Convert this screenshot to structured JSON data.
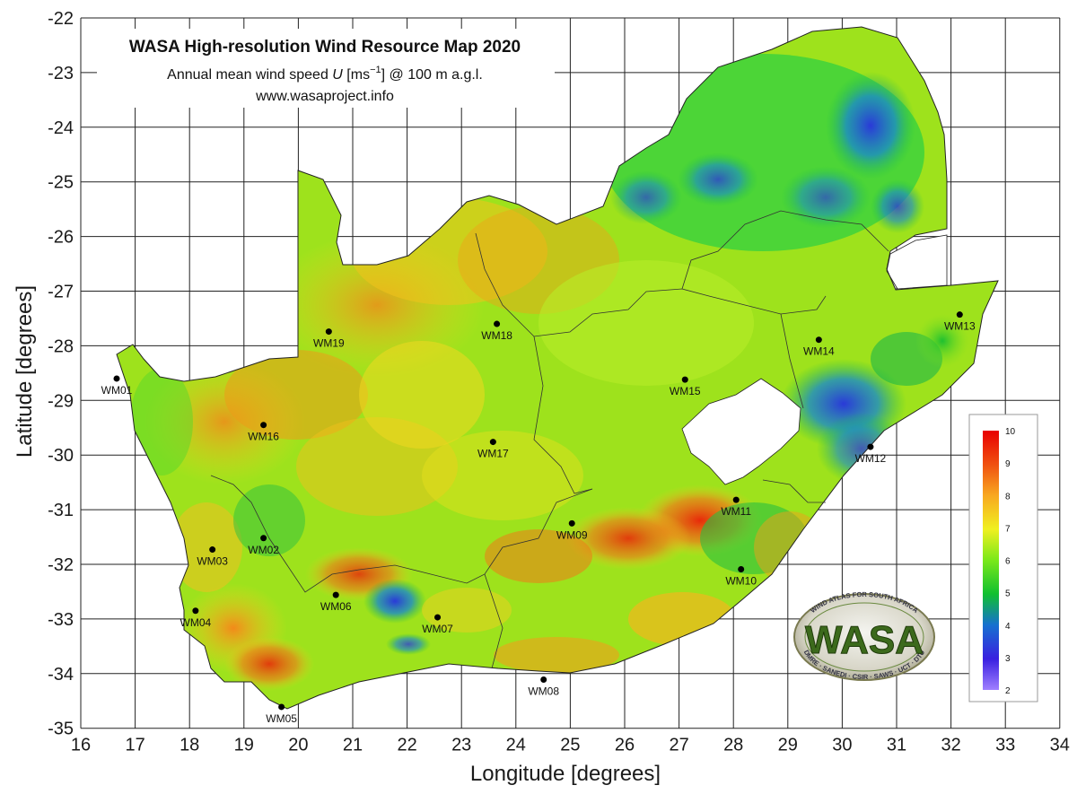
{
  "title": {
    "main": "WASA High-resolution Wind Resource Map 2020",
    "subtitle_pre": "Annual mean wind speed ",
    "subtitle_var": "U",
    "subtitle_unit_open": " [ms",
    "subtitle_unit_exp": "−1",
    "subtitle_unit_close": "] @ 100 m a.g.l.",
    "website": "www.wasaproject.info"
  },
  "axes": {
    "x_label": "Longitude [degrees]",
    "y_label": "Latitude [degrees]",
    "x_ticks": [
      "16",
      "17",
      "18",
      "19",
      "20",
      "21",
      "22",
      "23",
      "24",
      "25",
      "26",
      "27",
      "28",
      "29",
      "30",
      "31",
      "32",
      "33",
      "34"
    ],
    "y_ticks": [
      "-22",
      "-23",
      "-24",
      "-25",
      "-26",
      "-27",
      "-28",
      "-29",
      "-30",
      "-31",
      "-32",
      "-33",
      "-34",
      "-35"
    ],
    "x_range": [
      16,
      34
    ],
    "y_range": [
      -35,
      -22
    ],
    "grid": true
  },
  "colorbar": {
    "min": 2,
    "max": 10,
    "labels": [
      "10",
      "9",
      "8",
      "7",
      "6",
      "5",
      "4",
      "3",
      "2"
    ],
    "colors": [
      "#9b7cff",
      "#3a1fd8",
      "#1a6ad8",
      "#12c238",
      "#49e01a",
      "#c8f020",
      "#f5f01a",
      "#f8a21a",
      "#f04a10",
      "#e80000"
    ]
  },
  "stations": [
    {
      "id": "WM01",
      "lon": 16.66,
      "lat": -28.6
    },
    {
      "id": "WM02",
      "lon": 19.36,
      "lat": -31.52
    },
    {
      "id": "WM03",
      "lon": 18.42,
      "lat": -31.73
    },
    {
      "id": "WM04",
      "lon": 18.11,
      "lat": -32.85
    },
    {
      "id": "WM05",
      "lon": 19.69,
      "lat": -34.61
    },
    {
      "id": "WM06",
      "lon": 20.69,
      "lat": -32.56
    },
    {
      "id": "WM07",
      "lon": 22.56,
      "lat": -32.97
    },
    {
      "id": "WM08",
      "lon": 24.51,
      "lat": -34.11
    },
    {
      "id": "WM09",
      "lon": 25.03,
      "lat": -31.25
    },
    {
      "id": "WM10",
      "lon": 28.14,
      "lat": -32.09
    },
    {
      "id": "WM11",
      "lon": 28.05,
      "lat": -30.82
    },
    {
      "id": "WM12",
      "lon": 30.52,
      "lat": -29.85
    },
    {
      "id": "WM13",
      "lon": 32.16,
      "lat": -27.43
    },
    {
      "id": "WM14",
      "lon": 29.57,
      "lat": -27.89
    },
    {
      "id": "WM15",
      "lon": 27.11,
      "lat": -28.62
    },
    {
      "id": "WM16",
      "lon": 19.36,
      "lat": -29.45
    },
    {
      "id": "WM17",
      "lon": 23.58,
      "lat": -29.76
    },
    {
      "id": "WM18",
      "lon": 23.65,
      "lat": -27.6
    },
    {
      "id": "WM19",
      "lon": 20.56,
      "lat": -27.74
    }
  ],
  "logo": {
    "top_text": "WIND ATLAS FOR SOUTH AFRICA",
    "main_text": "WASA",
    "bottom_text": "DMRE · SANEDI · CSIR · SAWS · UCT · DTU"
  }
}
